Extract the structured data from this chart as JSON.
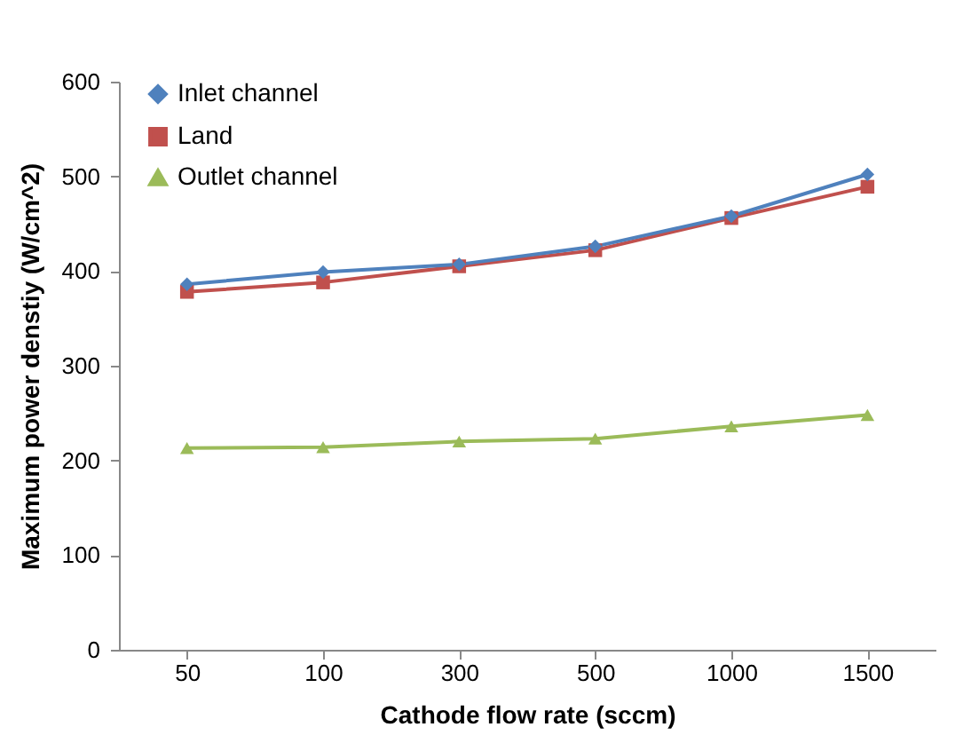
{
  "chart_data": {
    "type": "line",
    "xlabel": "Cathode flow rate (sccm)",
    "ylabel": "Maximum power denstiy (W/cm^2)",
    "categories": [
      "50",
      "100",
      "300",
      "500",
      "1000",
      "1500"
    ],
    "series": [
      {
        "name": "Inlet channel",
        "color": "#4f81bd",
        "marker": "diamond",
        "values": [
          386,
          399,
          407,
          426,
          458,
          502
        ]
      },
      {
        "name": "Land",
        "color": "#c0504d",
        "marker": "square",
        "values": [
          378,
          388,
          405,
          422,
          456,
          489
        ]
      },
      {
        "name": "Outlet channel",
        "color": "#9bbb59",
        "marker": "triangle",
        "values": [
          213,
          214,
          220,
          223,
          236,
          248
        ]
      }
    ],
    "ylim": [
      0,
      600
    ],
    "yticks": [
      0,
      100,
      200,
      300,
      400,
      500,
      600
    ],
    "grid": false,
    "legend": "top left"
  }
}
